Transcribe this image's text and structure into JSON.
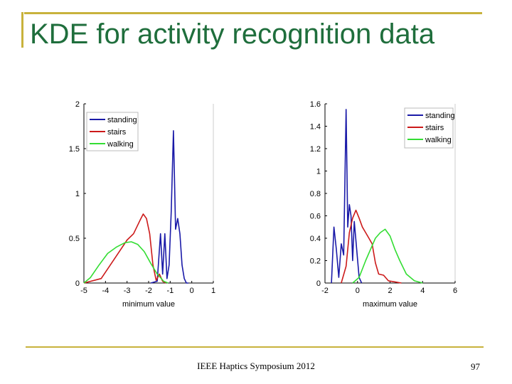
{
  "slide": {
    "title": "KDE for activity recognition data",
    "footer": "IEEE Haptics Symposium 2012",
    "page_number": "97"
  },
  "colors": {
    "title": "#1f6e3c",
    "rule": "#c8b23c",
    "standing": "#1a1aa8",
    "stairs": "#cc1a1a",
    "walking": "#33dd33"
  },
  "chart_data": [
    {
      "type": "line",
      "xlabel": "minimum value",
      "ylabel": "",
      "xlim": [
        -5,
        1
      ],
      "ylim": [
        0,
        2
      ],
      "xticks": [
        -5,
        -4,
        -3,
        -2,
        -1,
        0,
        1
      ],
      "yticks": [
        0,
        0.5,
        1,
        1.5,
        2
      ],
      "legend": "top-left",
      "series": [
        {
          "name": "standing",
          "color": "#1a1aa8",
          "x": [
            -1.9,
            -1.6,
            -1.45,
            -1.35,
            -1.25,
            -1.15,
            -1.05,
            -0.95,
            -0.85,
            -0.75,
            -0.65,
            -0.55,
            -0.45,
            -0.35,
            -0.25,
            -0.15
          ],
          "y": [
            0.0,
            0.02,
            0.55,
            0.1,
            0.55,
            0.05,
            0.2,
            0.8,
            1.7,
            0.6,
            0.72,
            0.55,
            0.2,
            0.05,
            0.0,
            0.0
          ]
        },
        {
          "name": "stairs",
          "color": "#cc1a1a",
          "x": [
            -5.0,
            -4.2,
            -3.5,
            -3.0,
            -2.7,
            -2.4,
            -2.25,
            -2.1,
            -1.95,
            -1.8,
            -1.65,
            -1.5,
            -1.35,
            -1.2
          ],
          "y": [
            0.0,
            0.05,
            0.3,
            0.48,
            0.55,
            0.7,
            0.77,
            0.72,
            0.55,
            0.2,
            0.03,
            0.1,
            0.02,
            0.0
          ]
        },
        {
          "name": "walking",
          "color": "#33dd33",
          "x": [
            -5.0,
            -4.7,
            -4.3,
            -3.9,
            -3.5,
            -3.1,
            -2.8,
            -2.5,
            -2.2,
            -1.9,
            -1.6,
            -1.3,
            -1.1
          ],
          "y": [
            0.0,
            0.06,
            0.2,
            0.33,
            0.4,
            0.45,
            0.46,
            0.43,
            0.35,
            0.22,
            0.1,
            0.02,
            0.0
          ]
        }
      ]
    },
    {
      "type": "line",
      "xlabel": "maximum value",
      "ylabel": "",
      "xlim": [
        -2,
        6
      ],
      "ylim": [
        0,
        1.6
      ],
      "xticks": [
        -2,
        0,
        2,
        4,
        6
      ],
      "yticks": [
        0,
        0.2,
        0.4,
        0.6,
        0.8,
        1,
        1.2,
        1.4,
        1.6
      ],
      "legend": "top-right",
      "series": [
        {
          "name": "standing",
          "color": "#1a1aa8",
          "x": [
            -1.6,
            -1.45,
            -1.3,
            -1.15,
            -1.0,
            -0.85,
            -0.7,
            -0.6,
            -0.5,
            -0.4,
            -0.3,
            -0.2,
            -0.05,
            0.1,
            0.25
          ],
          "y": [
            0.0,
            0.5,
            0.3,
            0.05,
            0.35,
            0.25,
            1.55,
            0.5,
            0.7,
            0.6,
            0.2,
            0.55,
            0.3,
            0.05,
            0.0
          ]
        },
        {
          "name": "stairs",
          "color": "#cc1a1a",
          "x": [
            -1.0,
            -0.7,
            -0.5,
            -0.3,
            -0.1,
            0.1,
            0.3,
            0.5,
            0.7,
            0.9,
            1.1,
            1.3,
            1.6,
            1.9,
            2.3,
            2.7
          ],
          "y": [
            0.0,
            0.15,
            0.45,
            0.58,
            0.65,
            0.58,
            0.5,
            0.45,
            0.4,
            0.35,
            0.18,
            0.08,
            0.07,
            0.02,
            0.01,
            0.0
          ]
        },
        {
          "name": "walking",
          "color": "#33dd33",
          "x": [
            -0.3,
            0.1,
            0.5,
            0.8,
            1.1,
            1.4,
            1.7,
            2.0,
            2.3,
            2.6,
            3.0,
            3.5,
            4.0
          ],
          "y": [
            0.0,
            0.05,
            0.2,
            0.3,
            0.4,
            0.45,
            0.48,
            0.42,
            0.3,
            0.2,
            0.08,
            0.02,
            0.0
          ]
        }
      ]
    }
  ]
}
